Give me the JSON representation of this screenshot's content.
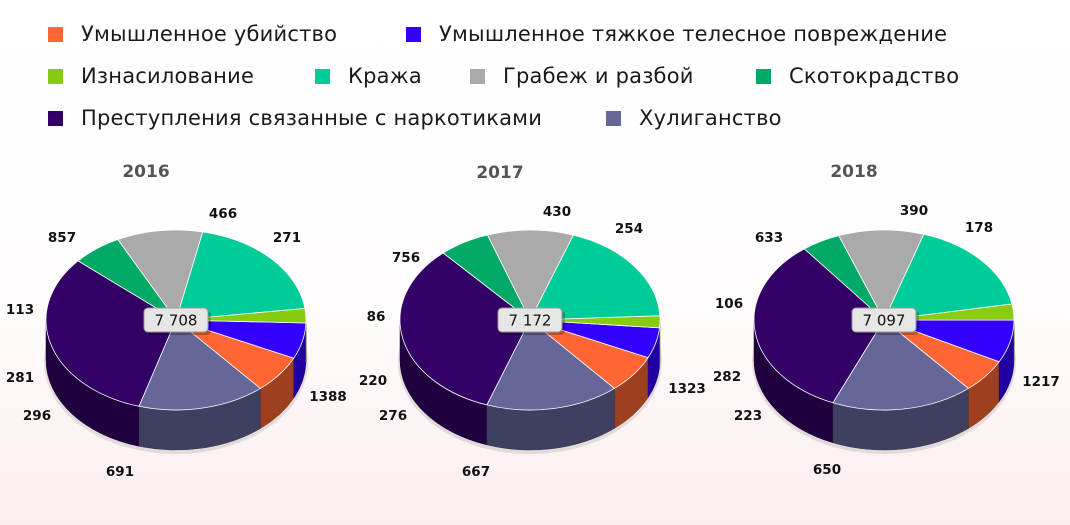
{
  "legend": [
    {
      "name": "Умышленное убийство",
      "color": "#ff6633"
    },
    {
      "name": "Умышленное тяжкое телесное повреждение",
      "color": "#3300ff"
    },
    {
      "name": "Изнасилование",
      "color": "#88cc11"
    },
    {
      "name": "Кража",
      "color": "#00cc99"
    },
    {
      "name": "Грабеж и  разбой",
      "color": "#aaaaaa"
    },
    {
      "name": "Скотокрадство",
      "color": "#00aa66"
    },
    {
      "name": "Преступления связанные с наркотиками",
      "color": "#330066"
    },
    {
      "name": "Хулиганство",
      "color": "#666699"
    }
  ],
  "chart_data": [
    {
      "type": "pie",
      "title": "2016",
      "total_label": "7 708",
      "categories": [
        "Умышленное убийство",
        "Умышленное тяжкое телесное повреждение",
        "Изнасилование",
        "Кража",
        "Грабеж и  разбой",
        "Скотокрадство",
        "Преступления связанные с наркотиками",
        "Хулиганство"
      ],
      "values": [
        296,
        281,
        113,
        857,
        466,
        271,
        1388,
        691
      ]
    },
    {
      "type": "pie",
      "title": "2017",
      "total_label": "7 172",
      "categories": [
        "Умышленное убийство",
        "Умышленное тяжкое телесное повреждение",
        "Изнасилование",
        "Кража",
        "Грабеж и  разбой",
        "Скотокрадство",
        "Преступления связанные с наркотиками",
        "Хулиганство"
      ],
      "values": [
        276,
        220,
        86,
        756,
        430,
        254,
        1323,
        667
      ]
    },
    {
      "type": "pie",
      "title": "2018",
      "total_label": "7 097",
      "categories": [
        "Умышленное убийство",
        "Умышленное тяжкое телесное повреждение",
        "Изнасилование",
        "Кража",
        "Грабеж и  разбой",
        "Скотокрадство",
        "Преступления связанные с наркотиками",
        "Хулиганство"
      ],
      "values": [
        223,
        282,
        106,
        633,
        390,
        178,
        1217,
        650
      ]
    }
  ]
}
